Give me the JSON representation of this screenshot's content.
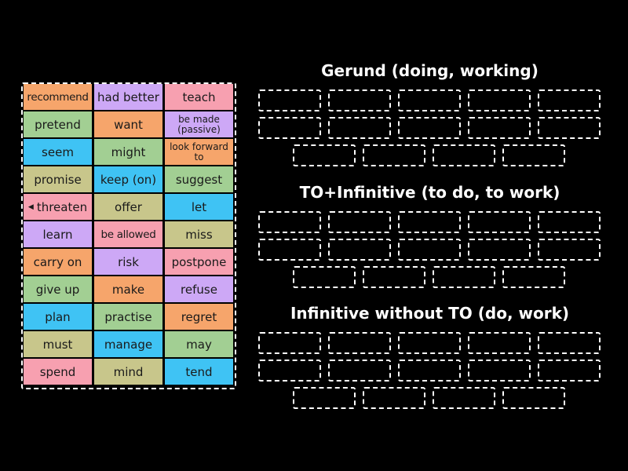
{
  "colors": {
    "orange": "#f6a56b",
    "purple": "#cda8f6",
    "pink": "#f7a0b0",
    "green": "#a2cf93",
    "blue": "#3fc3f4",
    "olive": "#c8c68b"
  },
  "tiles": [
    {
      "label": "recommend",
      "color": "orange"
    },
    {
      "label": "had better",
      "color": "purple"
    },
    {
      "label": "teach",
      "color": "pink"
    },
    {
      "label": "pretend",
      "color": "green"
    },
    {
      "label": "want",
      "color": "orange"
    },
    {
      "label": "be made (passive)",
      "color": "purple",
      "small": true
    },
    {
      "label": "seem",
      "color": "blue"
    },
    {
      "label": "might",
      "color": "green"
    },
    {
      "label": "look forward to",
      "color": "orange",
      "small": true
    },
    {
      "label": "promise",
      "color": "olive"
    },
    {
      "label": "keep (on)",
      "color": "blue"
    },
    {
      "label": "suggest",
      "color": "green"
    },
    {
      "label": "threaten",
      "color": "pink",
      "icon": "speaker-icon"
    },
    {
      "label": "offer",
      "color": "olive"
    },
    {
      "label": "let",
      "color": "blue"
    },
    {
      "label": "learn",
      "color": "purple"
    },
    {
      "label": "be allowed",
      "color": "pink"
    },
    {
      "label": "miss",
      "color": "olive"
    },
    {
      "label": "carry on",
      "color": "orange"
    },
    {
      "label": "risk",
      "color": "purple"
    },
    {
      "label": "postpone",
      "color": "pink"
    },
    {
      "label": "give up",
      "color": "green"
    },
    {
      "label": "make",
      "color": "orange"
    },
    {
      "label": "refuse",
      "color": "purple"
    },
    {
      "label": "plan",
      "color": "blue"
    },
    {
      "label": "practise",
      "color": "green"
    },
    {
      "label": "regret",
      "color": "orange"
    },
    {
      "label": "must",
      "color": "olive"
    },
    {
      "label": "manage",
      "color": "blue"
    },
    {
      "label": "may",
      "color": "green"
    },
    {
      "label": "spend",
      "color": "pink"
    },
    {
      "label": "mind",
      "color": "olive"
    },
    {
      "label": "tend",
      "color": "blue"
    }
  ],
  "groups": [
    {
      "title": "Gerund (doing, working)"
    },
    {
      "title": "TO+Infinitive (to do, to work)"
    },
    {
      "title": "Infinitive without TO (do, work)"
    }
  ]
}
